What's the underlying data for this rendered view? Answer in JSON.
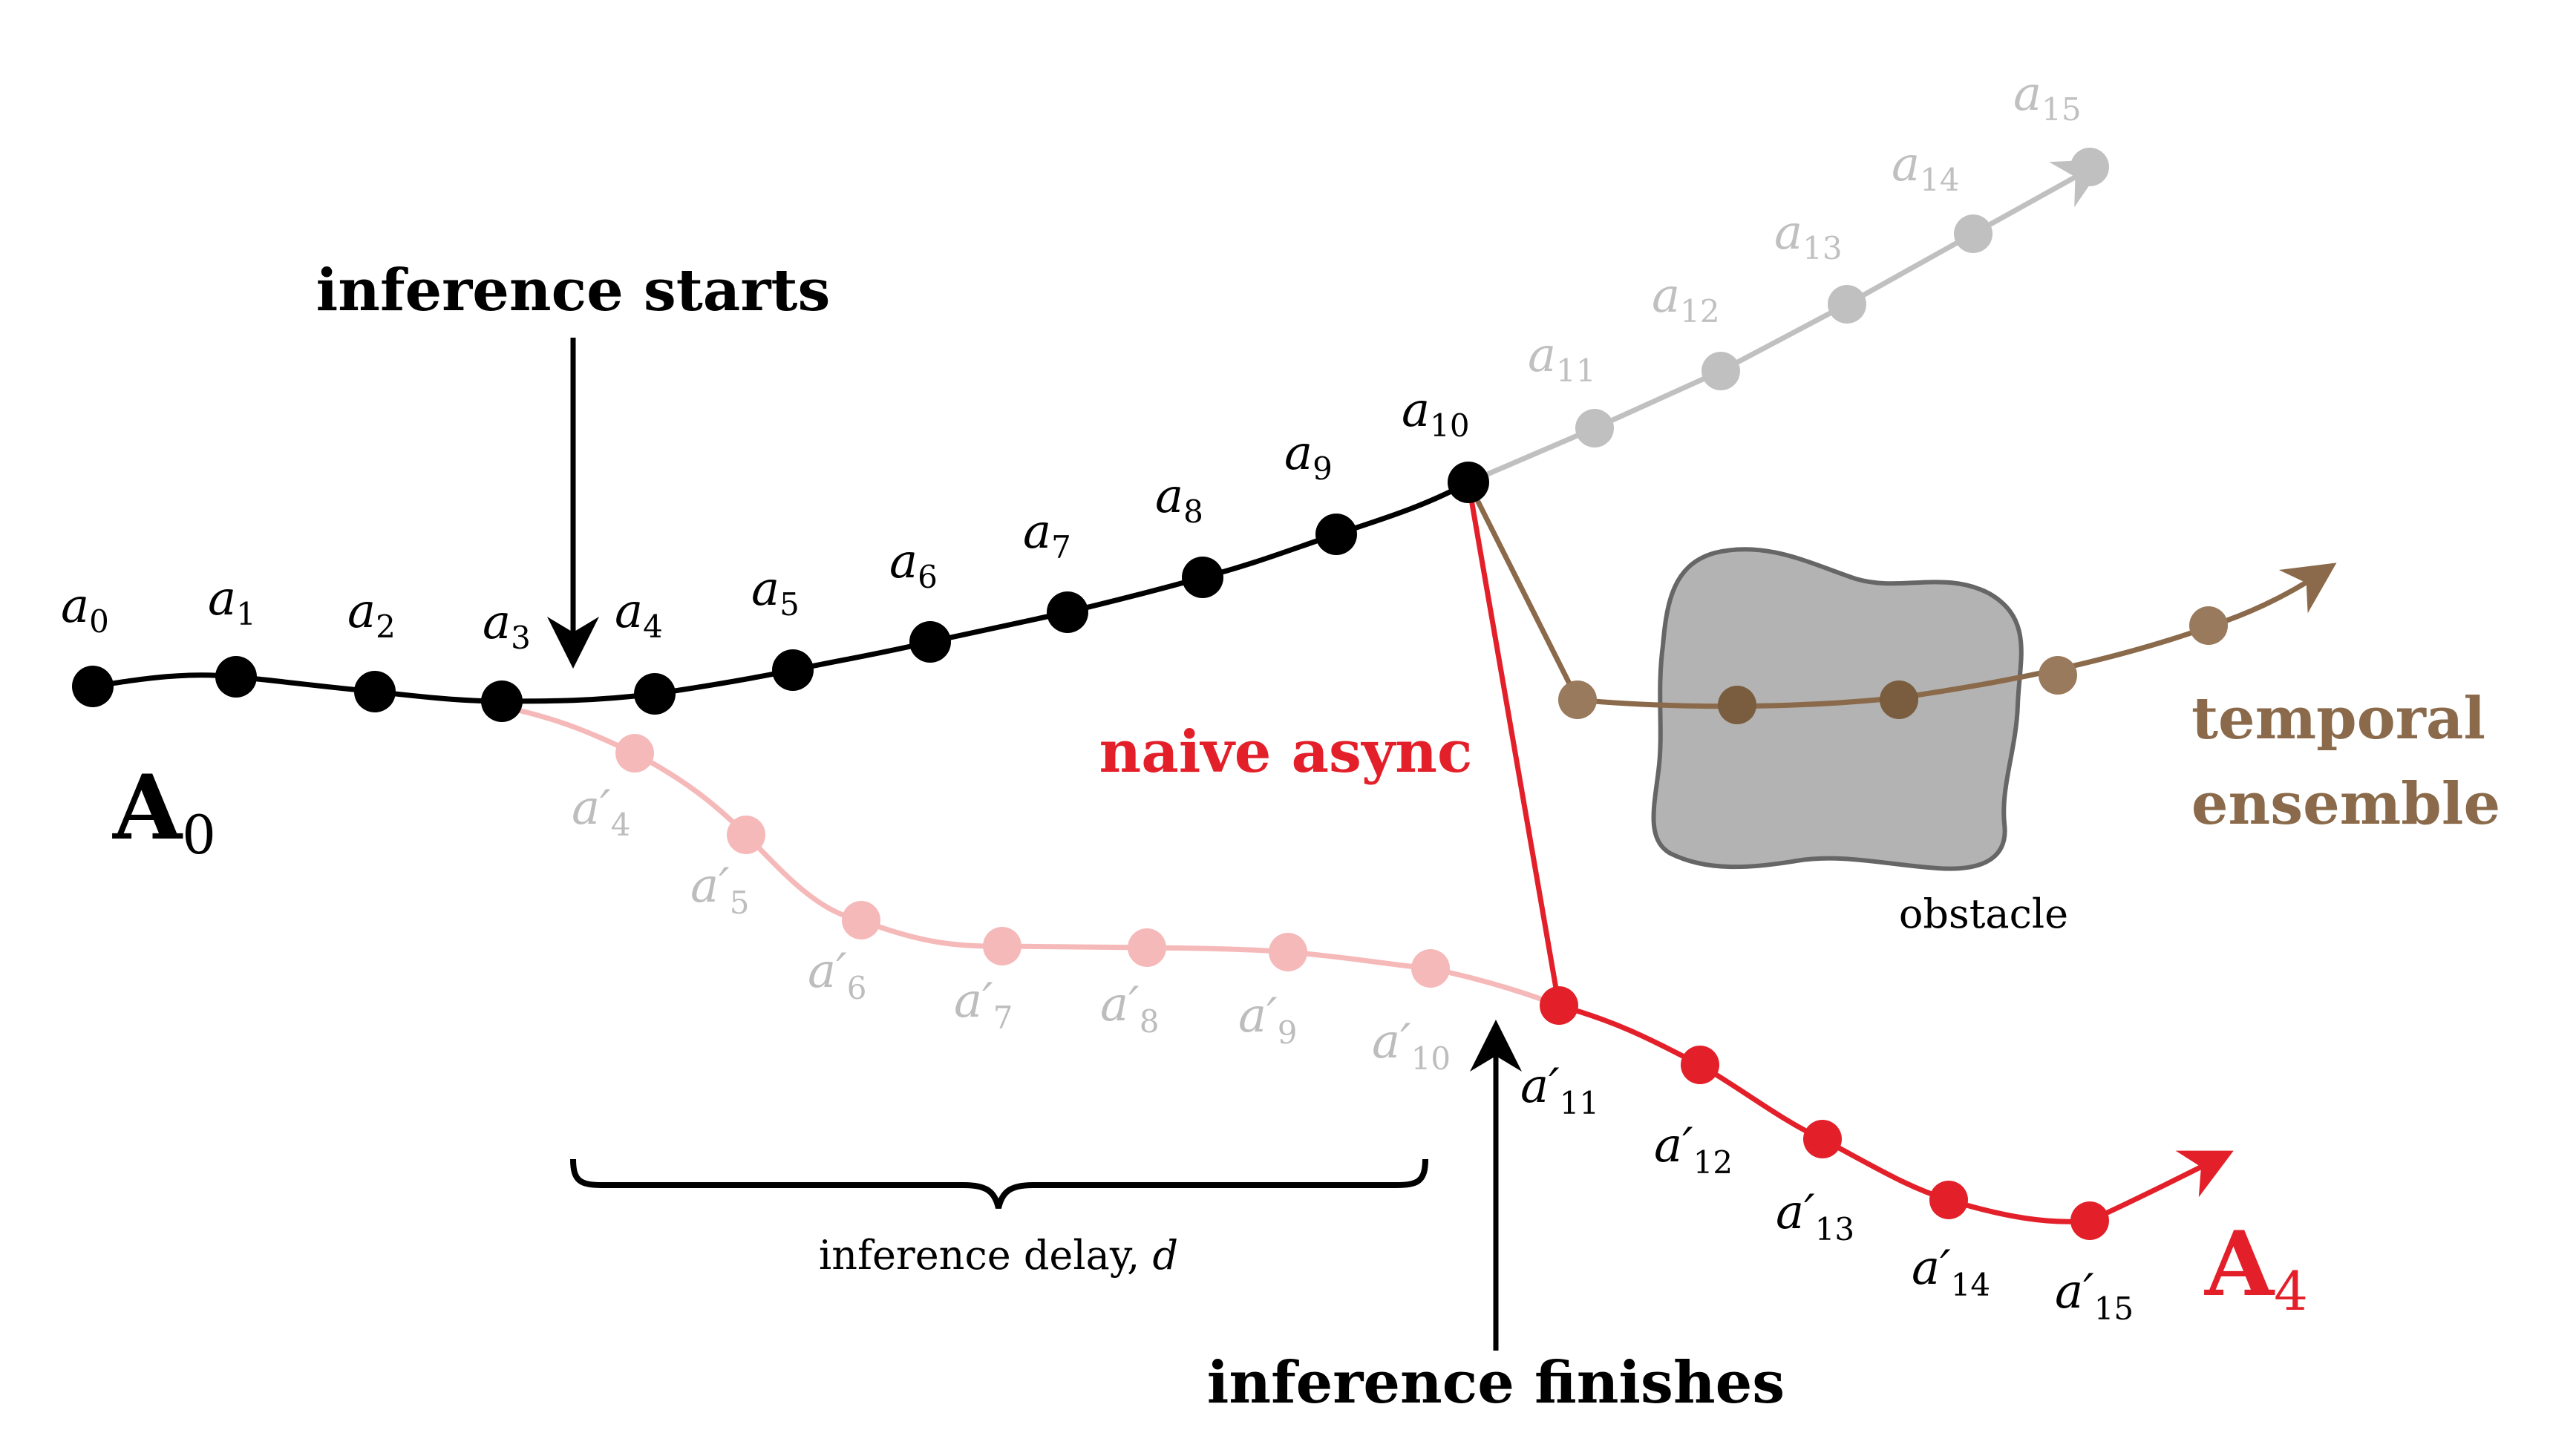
{
  "colors": {
    "black": "#000000",
    "gray": "#c0c0c0",
    "red": "#e3202a",
    "pink": "#f6b9b9",
    "brown": "#8a6a4a",
    "brown_point": "#9a7a5c",
    "obstacle_fill": "#b3b3b3",
    "obstacle_stroke": "#666666"
  },
  "chunk_a0": {
    "label_main": "A",
    "label_sub": "0",
    "points": [
      {
        "base": "a",
        "sub": "0"
      },
      {
        "base": "a",
        "sub": "1"
      },
      {
        "base": "a",
        "sub": "2"
      },
      {
        "base": "a",
        "sub": "3"
      },
      {
        "base": "a",
        "sub": "4"
      },
      {
        "base": "a",
        "sub": "5"
      },
      {
        "base": "a",
        "sub": "6"
      },
      {
        "base": "a",
        "sub": "7"
      },
      {
        "base": "a",
        "sub": "8"
      },
      {
        "base": "a",
        "sub": "9"
      },
      {
        "base": "a",
        "sub": "10"
      }
    ],
    "future_points": [
      {
        "base": "a",
        "sub": "11"
      },
      {
        "base": "a",
        "sub": "12"
      },
      {
        "base": "a",
        "sub": "13"
      },
      {
        "base": "a",
        "sub": "14"
      },
      {
        "base": "a",
        "sub": "15"
      }
    ]
  },
  "chunk_a4": {
    "label_main": "A",
    "label_sub": "4",
    "faded_points": [
      {
        "base": "a′",
        "sub": "4"
      },
      {
        "base": "a′",
        "sub": "5"
      },
      {
        "base": "a′",
        "sub": "6"
      },
      {
        "base": "a′",
        "sub": "7"
      },
      {
        "base": "a′",
        "sub": "8"
      },
      {
        "base": "a′",
        "sub": "9"
      },
      {
        "base": "a′",
        "sub": "10"
      }
    ],
    "active_points": [
      {
        "base": "a′",
        "sub": "11"
      },
      {
        "base": "a′",
        "sub": "12"
      },
      {
        "base": "a′",
        "sub": "13"
      },
      {
        "base": "a′",
        "sub": "14"
      },
      {
        "base": "a′",
        "sub": "15"
      }
    ]
  },
  "annotations": {
    "inference_starts": "inference starts",
    "inference_finishes": "inference finishes",
    "inference_delay": "inference delay, ",
    "inference_delay_var": "d",
    "naive_async": "naive async",
    "temporal": "temporal",
    "ensemble": "ensemble",
    "obstacle": "obstacle"
  }
}
